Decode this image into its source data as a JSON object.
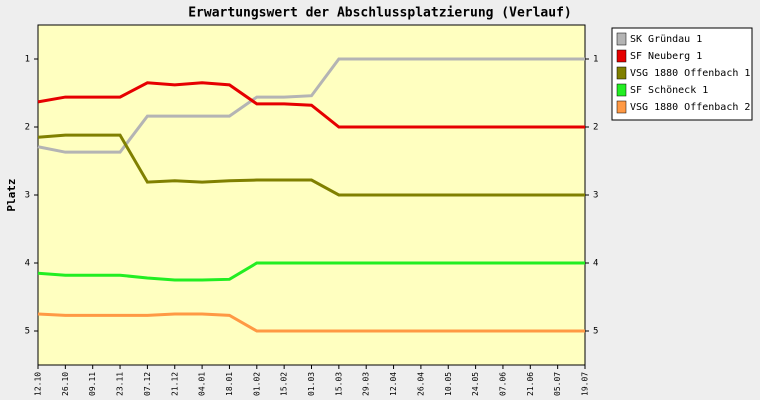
{
  "chart_data": {
    "type": "line",
    "title": "Erwartungswert der Abschlussplatzierung (Verlauf)",
    "y_label": "Platz",
    "categories": [
      "12.10",
      "26.10",
      "09.11",
      "23.11",
      "07.12",
      "21.12",
      "04.01",
      "18.01",
      "01.02",
      "15.02",
      "01.03",
      "15.03",
      "29.03",
      "12.04",
      "26.04",
      "10.05",
      "24.05",
      "07.06",
      "21.06",
      "05.07",
      "19.07"
    ],
    "ylim": [
      5.5,
      0.5
    ],
    "yticks": [
      1,
      2,
      3,
      4,
      5
    ],
    "legend": "right",
    "series": [
      {
        "name": "SK Gründau 1",
        "color": "#b4b4b4",
        "values": [
          2.29,
          2.37,
          2.37,
          2.37,
          1.84,
          1.84,
          1.84,
          1.84,
          1.56,
          1.56,
          1.54,
          1,
          1,
          1,
          1,
          1,
          1,
          1,
          1,
          1,
          1
        ]
      },
      {
        "name": "SF Neuberg 1",
        "color": "#e60000",
        "values": [
          1.63,
          1.56,
          1.56,
          1.56,
          1.35,
          1.38,
          1.35,
          1.38,
          1.66,
          1.66,
          1.68,
          2,
          2,
          2,
          2,
          2,
          2,
          2,
          2,
          2,
          2
        ]
      },
      {
        "name": "VSG 1880 Offenbach 1",
        "color": "#808000",
        "values": [
          2.15,
          2.12,
          2.12,
          2.12,
          2.81,
          2.79,
          2.81,
          2.79,
          2.78,
          2.78,
          2.78,
          3,
          3,
          3,
          3,
          3,
          3,
          3,
          3,
          3,
          3
        ]
      },
      {
        "name": "SF Schöneck 1",
        "color": "#22ee22",
        "values": [
          4.15,
          4.18,
          4.18,
          4.18,
          4.22,
          4.25,
          4.25,
          4.24,
          4,
          4,
          4,
          4,
          4,
          4,
          4,
          4,
          4,
          4,
          4,
          4,
          4
        ]
      },
      {
        "name": "VSG 1880 Offenbach 2",
        "color": "#ff9944",
        "values": [
          4.75,
          4.77,
          4.77,
          4.77,
          4.77,
          4.75,
          4.75,
          4.77,
          5,
          5,
          5,
          5,
          5,
          5,
          5,
          5,
          5,
          5,
          5,
          5,
          5
        ]
      }
    ]
  }
}
